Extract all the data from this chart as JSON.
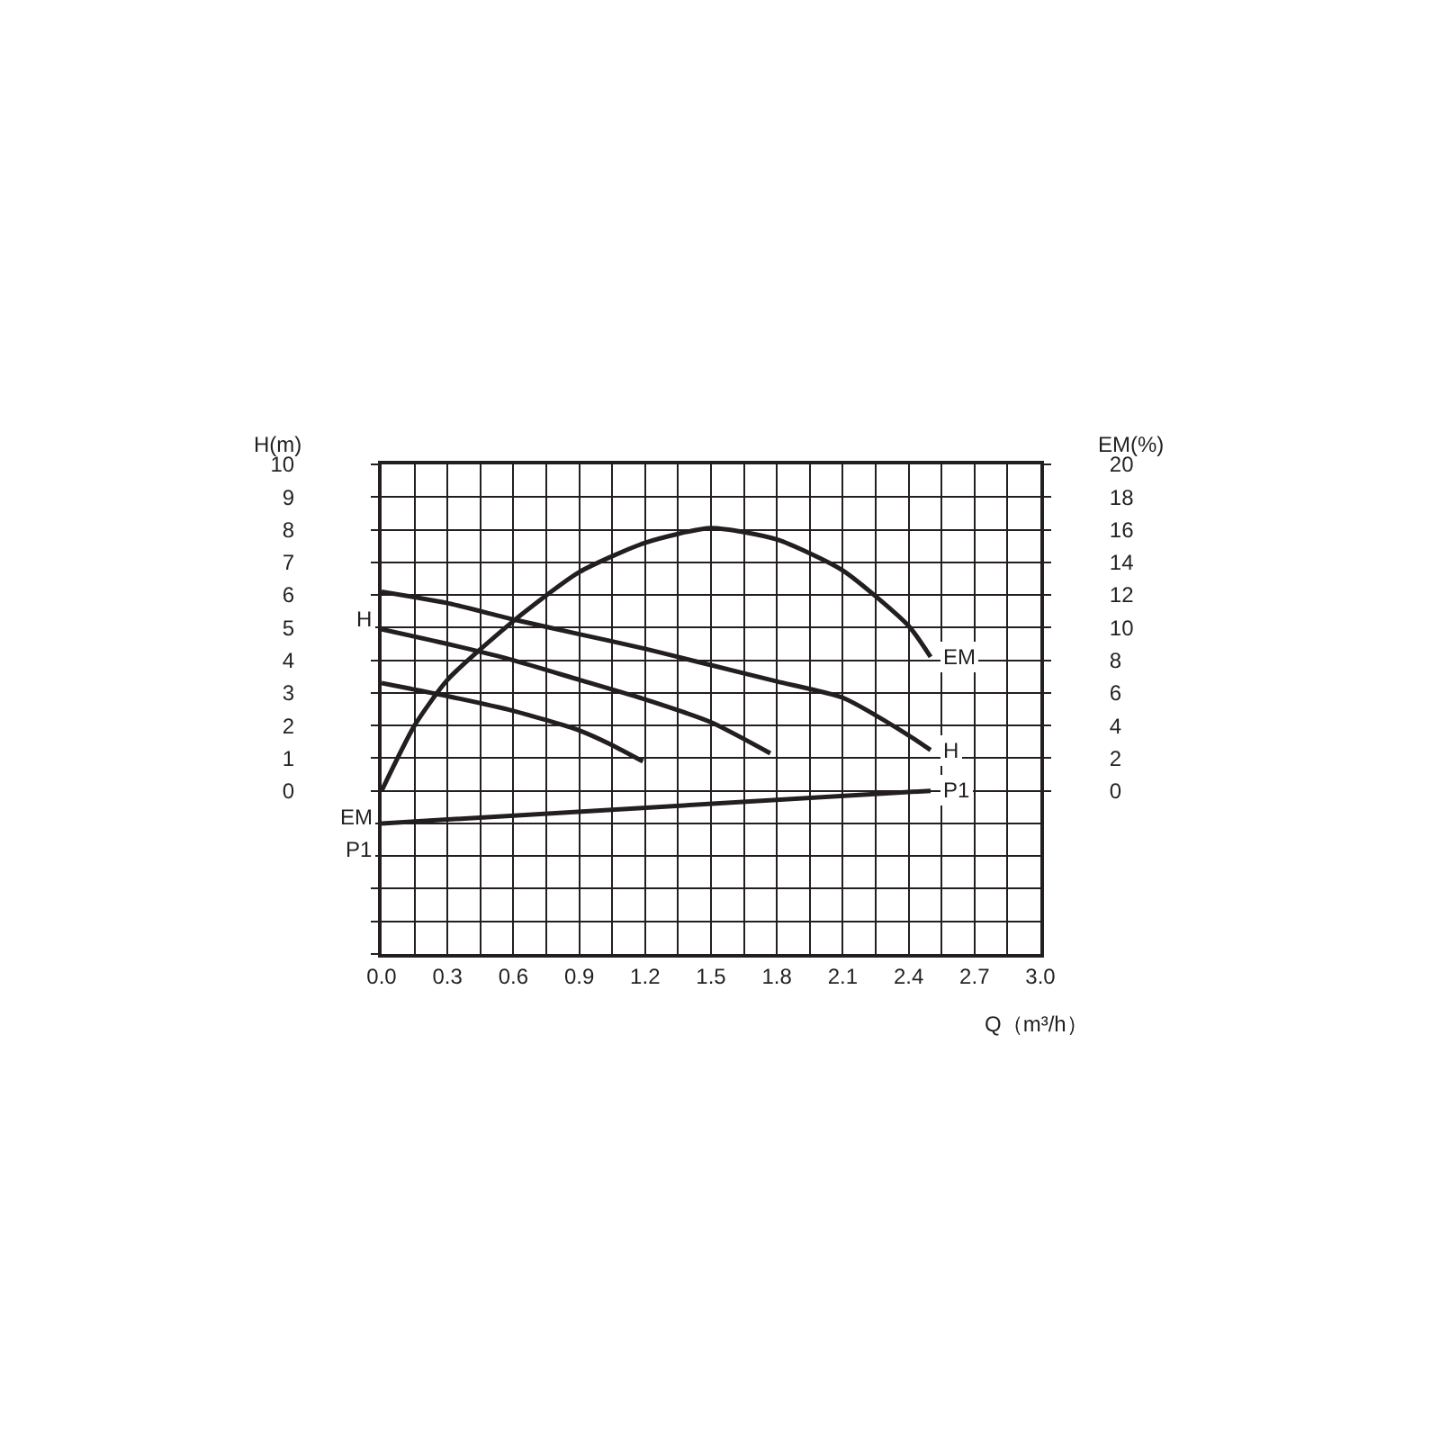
{
  "chart_data": {
    "type": "line",
    "xlabel": "Q（m³/h）",
    "ylabel": "H(m)",
    "y2label": "EM(%)",
    "xlim": [
      0,
      3.0
    ],
    "xticks": [
      {
        "value": 0,
        "label": "0.0"
      },
      {
        "value": 0.15,
        "label": null
      },
      {
        "value": 0.3,
        "label": "0.3"
      },
      {
        "value": 0.45,
        "label": null
      },
      {
        "value": 0.6,
        "label": "0.6"
      },
      {
        "value": 0.75,
        "label": null
      },
      {
        "value": 0.9,
        "label": "0.9"
      },
      {
        "value": 1.05,
        "label": null
      },
      {
        "value": 1.2,
        "label": "1.2"
      },
      {
        "value": 1.35,
        "label": null
      },
      {
        "value": 1.5,
        "label": "1.5"
      },
      {
        "value": 1.65,
        "label": null
      },
      {
        "value": 1.8,
        "label": "1.8"
      },
      {
        "value": 1.95,
        "label": null
      },
      {
        "value": 2.1,
        "label": "2.1"
      },
      {
        "value": 2.25,
        "label": null
      },
      {
        "value": 2.4,
        "label": "2.4"
      },
      {
        "value": 2.55,
        "label": null
      },
      {
        "value": 2.7,
        "label": "2.7"
      },
      {
        "value": 2.85,
        "label": null
      },
      {
        "value": 3.0,
        "label": "3.0"
      }
    ],
    "ylim": [
      -5,
      10
    ],
    "yticks": [
      {
        "value": -5,
        "label": null
      },
      {
        "value": -4,
        "label": null
      },
      {
        "value": -3,
        "label": null
      },
      {
        "value": -2,
        "label": null
      },
      {
        "value": -1,
        "label": null
      },
      0,
      1,
      2,
      3,
      4,
      5,
      6,
      7,
      8,
      9,
      10
    ],
    "y2lim": [
      -10,
      20
    ],
    "y2ticks": [
      0,
      2,
      4,
      6,
      8,
      10,
      12,
      14,
      16,
      18,
      20
    ],
    "grid": true,
    "legend": "left",
    "marker": "none",
    "line_style": "solid",
    "series": [
      {
        "name": "H",
        "color": "#231f20",
        "x": [
          0,
          0.3,
          0.6,
          0.9,
          1.2,
          1.5,
          1.8,
          2.1,
          2.4,
          2.5
        ],
        "values": [
          6.1,
          5.75,
          5.25,
          4.8,
          4.35,
          3.85,
          3.35,
          2.85,
          1.7,
          1.25
        ]
      },
      {
        "color": "#231f20",
        "x": [
          0,
          0.3,
          0.6,
          0.9,
          1.2,
          1.5,
          1.77
        ],
        "values": [
          4.95,
          4.5,
          4.0,
          3.4,
          2.8,
          2.1,
          1.15
        ]
      },
      {
        "color": "#231f20",
        "x": [
          0,
          0.3,
          0.6,
          0.9,
          1.05,
          1.19
        ],
        "values": [
          3.3,
          2.9,
          2.45,
          1.85,
          1.4,
          0.9
        ]
      },
      {
        "name": "EM",
        "color": "#231f20",
        "axis": "y2",
        "x": [
          0,
          0.15,
          0.3,
          0.6,
          0.9,
          1.2,
          1.5,
          1.8,
          2.1,
          2.4,
          2.5
        ],
        "values": [
          0,
          4,
          6.8,
          10.4,
          13.4,
          15.2,
          16.1,
          15.4,
          13.5,
          10.1,
          8.2
        ]
      },
      {
        "name": "P1",
        "color": "#231f20",
        "x": [
          0,
          2.5
        ],
        "values": [
          -1.0,
          0.0
        ]
      }
    ]
  }
}
